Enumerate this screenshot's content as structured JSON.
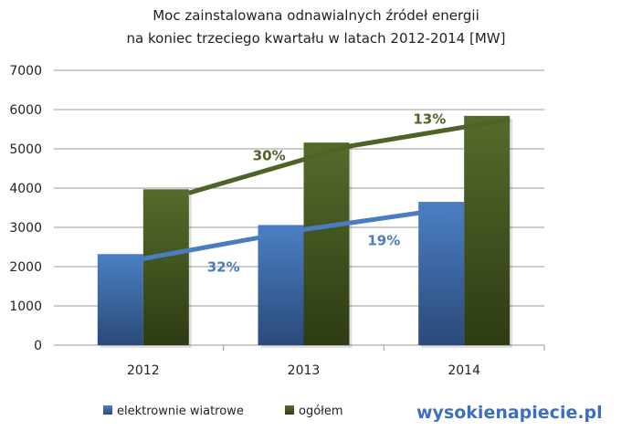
{
  "chart_data": {
    "type": "bar",
    "title": "Moc zainstalowana odnawialnych źródeł energii",
    "subtitle": "na koniec trzeciego kwartału w latach 2012-2014 [MW]",
    "categories": [
      "2012",
      "2013",
      "2014"
    ],
    "series": [
      {
        "name": "elektrownie wiatrowe",
        "values": [
          2320,
          3060,
          3650
        ],
        "color": "#4a7cc0"
      },
      {
        "name": "ogółem",
        "values": [
          3970,
          5160,
          5840
        ],
        "color": "#4f6228"
      }
    ],
    "trend_labels": {
      "elektrownie wiatrowe": [
        "32%",
        "19%"
      ],
      "ogółem": [
        "30%",
        "13%"
      ]
    },
    "ylim": [
      0,
      7000
    ],
    "yticks": [
      "0",
      "1000",
      "2000",
      "3000",
      "4000",
      "5000",
      "6000",
      "7000"
    ],
    "grid": true,
    "legend": "bottom-left"
  },
  "logo": "wysokienapiecie.pl"
}
